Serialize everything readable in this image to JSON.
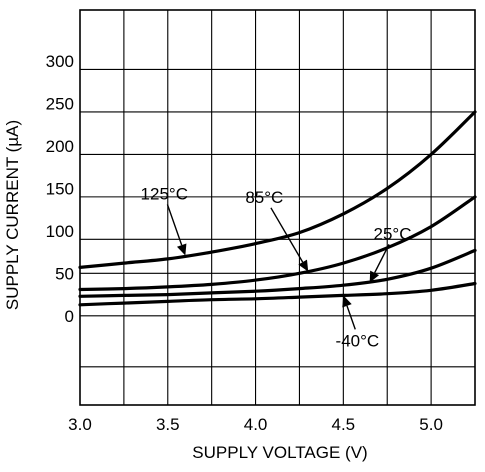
{
  "chart_data": {
    "type": "line",
    "xlabel": "SUPPLY VOLTAGE (V)",
    "ylabel": "SUPPLY CURRENT (µA)",
    "xlim": [
      3.0,
      5.25
    ],
    "ylim": [
      -105,
      360
    ],
    "grid": true,
    "x_ticks": [
      {
        "value": 3.0,
        "label": "3.0"
      },
      {
        "value": 3.5,
        "label": "3.5"
      },
      {
        "value": 4.0,
        "label": "4.0"
      },
      {
        "value": 4.5,
        "label": "4.5"
      },
      {
        "value": 5.0,
        "label": "5.0"
      }
    ],
    "y_ticks": [
      {
        "value": 0,
        "label": "0"
      },
      {
        "value": 50,
        "label": "50"
      },
      {
        "value": 100,
        "label": "100"
      },
      {
        "value": 150,
        "label": "150"
      },
      {
        "value": 200,
        "label": "200"
      },
      {
        "value": 250,
        "label": "250"
      },
      {
        "value": 300,
        "label": "300"
      }
    ],
    "series": [
      {
        "name": "125°C",
        "x": [
          3.0,
          3.25,
          3.5,
          3.75,
          4.0,
          4.25,
          4.5,
          4.75,
          5.0,
          5.25
        ],
        "values": [
          57,
          62,
          67,
          75,
          85,
          98,
          120,
          150,
          190,
          240
        ]
      },
      {
        "name": "85°C",
        "x": [
          3.0,
          3.25,
          3.5,
          3.75,
          4.0,
          4.25,
          4.5,
          4.75,
          5.0,
          5.25
        ],
        "values": [
          31,
          32,
          34,
          37,
          42,
          50,
          62,
          80,
          105,
          140
        ]
      },
      {
        "name": "25°C",
        "x": [
          3.0,
          3.25,
          3.5,
          3.75,
          4.0,
          4.25,
          4.5,
          4.75,
          5.0,
          5.25
        ],
        "values": [
          23,
          24,
          25,
          27,
          29,
          32,
          36,
          43,
          56,
          77
        ]
      },
      {
        "name": "-40°C",
        "x": [
          3.0,
          3.25,
          3.5,
          3.75,
          4.0,
          4.25,
          4.5,
          4.75,
          5.0,
          5.25
        ],
        "values": [
          13,
          15,
          17,
          19,
          20,
          22,
          24,
          26,
          30,
          38
        ]
      }
    ],
    "annotations": [
      {
        "series": "125°C",
        "text": "125°C",
        "text_x": 3.48,
        "text_y": 137,
        "arrow_to_x": 3.6,
        "arrow_to_y": 71
      },
      {
        "series": "85°C",
        "text": "85°C",
        "text_x": 4.05,
        "text_y": 133,
        "arrow_to_x": 4.3,
        "arrow_to_y": 52
      },
      {
        "series": "25°C",
        "text": "25°C",
        "text_x": 4.78,
        "text_y": 90,
        "arrow_to_x": 4.65,
        "arrow_to_y": 39
      },
      {
        "series": "-40°C",
        "text": "-40°C",
        "text_x": 4.58,
        "text_y": -36,
        "arrow_to_x": 4.5,
        "arrow_to_y": 24
      }
    ]
  }
}
